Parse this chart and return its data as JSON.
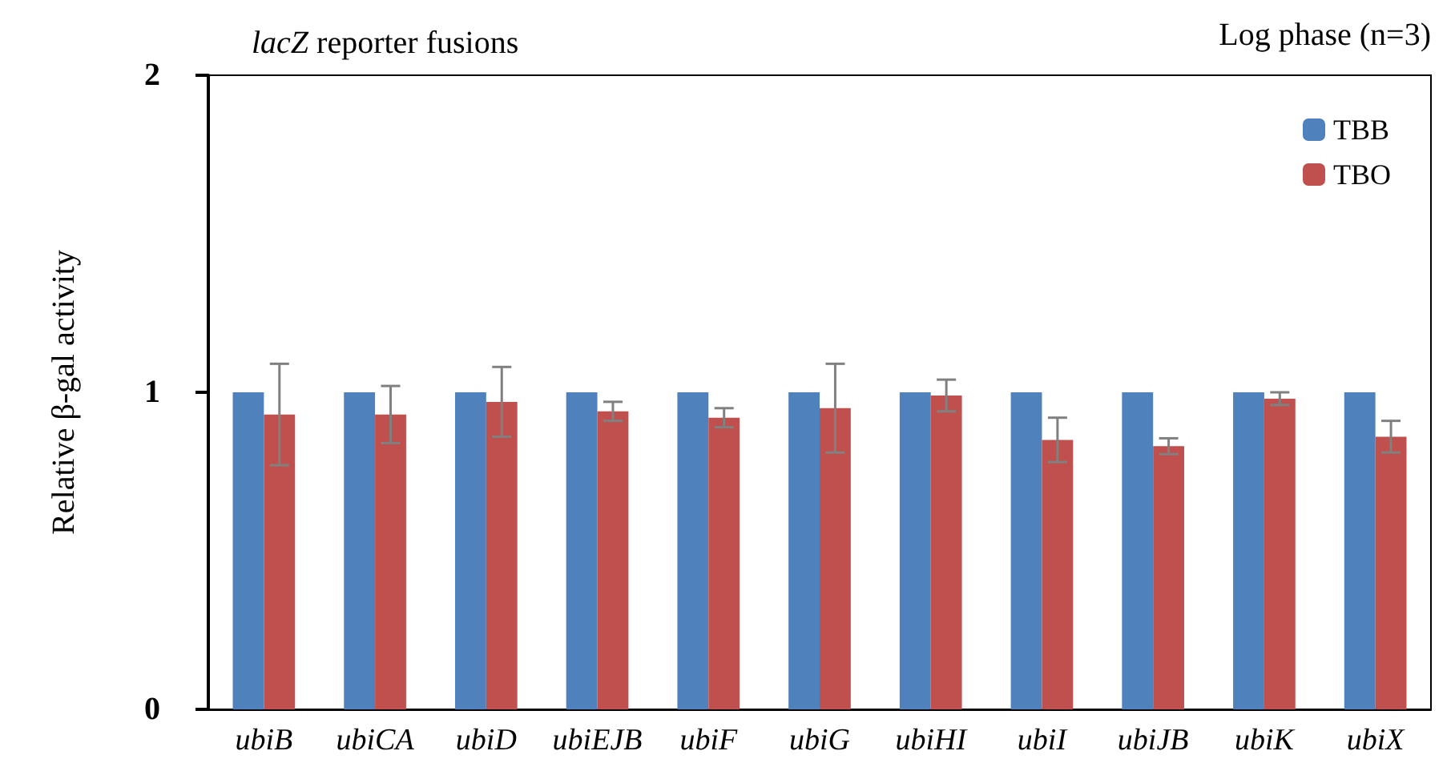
{
  "chart_data": {
    "type": "bar",
    "title": "lacZ reporter fusions",
    "annotations": [
      "Log phase (n=3)"
    ],
    "ylabel": "Relative β-gal activity",
    "categories": [
      "ubiB",
      "ubiCA",
      "ubiD",
      "ubiEJB",
      "ubiF",
      "ubiG",
      "ubiHI",
      "ubiI",
      "ubiJB",
      "ubiK",
      "ubiX"
    ],
    "series": [
      {
        "name": "TBB",
        "color": "#4f81bd",
        "values": [
          1,
          1,
          1,
          1,
          1,
          1,
          1,
          1,
          1,
          1,
          1
        ]
      },
      {
        "name": "TBO",
        "color": "#c0504d",
        "values": [
          0.93,
          0.93,
          0.97,
          0.94,
          0.92,
          0.95,
          0.99,
          0.85,
          0.83,
          0.98,
          0.86
        ],
        "errors": [
          0.16,
          0.09,
          0.11,
          0.03,
          0.03,
          0.14,
          0.05,
          0.07,
          0.025,
          0.02,
          0.05
        ]
      }
    ],
    "ylim": [
      0,
      2
    ],
    "yticks": [
      0,
      1,
      2
    ],
    "grid": false,
    "legend": "top right"
  }
}
